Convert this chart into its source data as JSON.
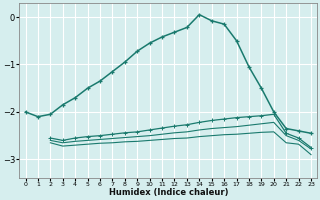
{
  "title": "",
  "xlabel": "Humidex (Indice chaleur)",
  "ylabel": "",
  "background_color": "#d6eeee",
  "grid_color": "#ffffff",
  "line_color": "#1a7a6e",
  "x_ticks": [
    0,
    1,
    2,
    3,
    4,
    5,
    6,
    7,
    8,
    9,
    10,
    11,
    12,
    13,
    14,
    15,
    16,
    17,
    18,
    19,
    20,
    21,
    22,
    23
  ],
  "y_ticks": [
    0,
    -1,
    -2,
    -3
  ],
  "ylim": [
    -3.4,
    0.3
  ],
  "xlim": [
    -0.5,
    23.5
  ],
  "curve1_x": [
    0,
    1,
    2,
    3,
    4,
    5,
    6,
    7,
    8,
    9,
    10,
    11,
    12,
    13,
    14,
    15,
    16,
    17,
    18,
    19,
    20,
    21,
    22,
    23
  ],
  "curve1_y": [
    -2.0,
    -2.1,
    -2.05,
    -1.85,
    -1.7,
    -1.5,
    -1.35,
    -1.15,
    -0.95,
    -0.72,
    -0.55,
    -0.42,
    -0.32,
    -0.22,
    0.05,
    -0.08,
    -0.15,
    -0.5,
    -1.05,
    -1.5,
    -2.0,
    -2.35,
    -2.4,
    -2.45
  ],
  "curve2_x": [
    2,
    3,
    4,
    5,
    6,
    7,
    8,
    9,
    10,
    11,
    12,
    13,
    14,
    15,
    16,
    17,
    18,
    19,
    20,
    21,
    22,
    23
  ],
  "curve2_y": [
    -2.55,
    -2.6,
    -2.55,
    -2.52,
    -2.5,
    -2.47,
    -2.44,
    -2.42,
    -2.38,
    -2.34,
    -2.3,
    -2.27,
    -2.22,
    -2.18,
    -2.15,
    -2.12,
    -2.1,
    -2.08,
    -2.05,
    -2.45,
    -2.55,
    -2.75
  ],
  "curve3_x": [
    2,
    3,
    4,
    5,
    6,
    7,
    8,
    9,
    10,
    11,
    12,
    13,
    14,
    15,
    16,
    17,
    18,
    19,
    20,
    21,
    22,
    23
  ],
  "curve3_y": [
    -2.6,
    -2.65,
    -2.62,
    -2.6,
    -2.58,
    -2.56,
    -2.54,
    -2.52,
    -2.5,
    -2.47,
    -2.44,
    -2.42,
    -2.38,
    -2.35,
    -2.33,
    -2.31,
    -2.28,
    -2.25,
    -2.22,
    -2.5,
    -2.6,
    -2.78
  ],
  "curve4_x": [
    2,
    3,
    4,
    5,
    6,
    7,
    8,
    9,
    10,
    11,
    12,
    13,
    14,
    15,
    16,
    17,
    18,
    19,
    20,
    21,
    22,
    23
  ],
  "curve4_y": [
    -2.65,
    -2.72,
    -2.7,
    -2.68,
    -2.66,
    -2.65,
    -2.63,
    -2.62,
    -2.6,
    -2.58,
    -2.56,
    -2.55,
    -2.52,
    -2.5,
    -2.48,
    -2.47,
    -2.45,
    -2.43,
    -2.42,
    -2.65,
    -2.68,
    -2.9
  ]
}
